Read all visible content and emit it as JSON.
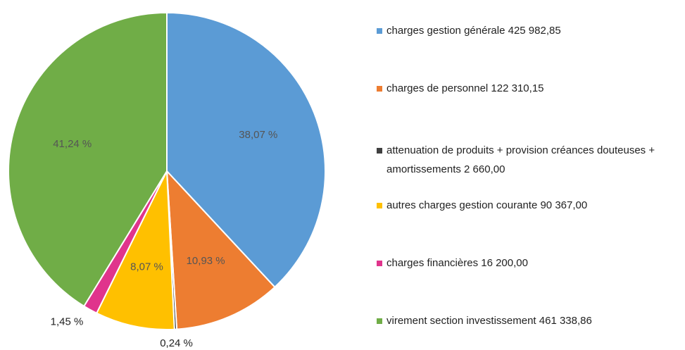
{
  "chart_data": {
    "type": "pie",
    "categories": [
      "charges gestion générale  425 982,85",
      "charges de personnel  122 310,15",
      "attenuation de produits + provision créances douteuses + amortissements  2 660,00",
      "autres charges gestion courante  90 367,00",
      "charges financières  16 200,00",
      "virement section investissement  461 338,86"
    ],
    "values": [
      38.07,
      10.93,
      0.24,
      8.07,
      1.45,
      41.24
    ],
    "value_labels": [
      "38,07 %",
      "10,93 %",
      "0,24 %",
      "8,07 %",
      "1,45 %",
      "41,24 %"
    ],
    "colors": [
      "#5b9bd5",
      "#ed7d31",
      "#404040",
      "#ffc000",
      "#e0348c",
      "#70ad47"
    ],
    "legend": "right"
  }
}
